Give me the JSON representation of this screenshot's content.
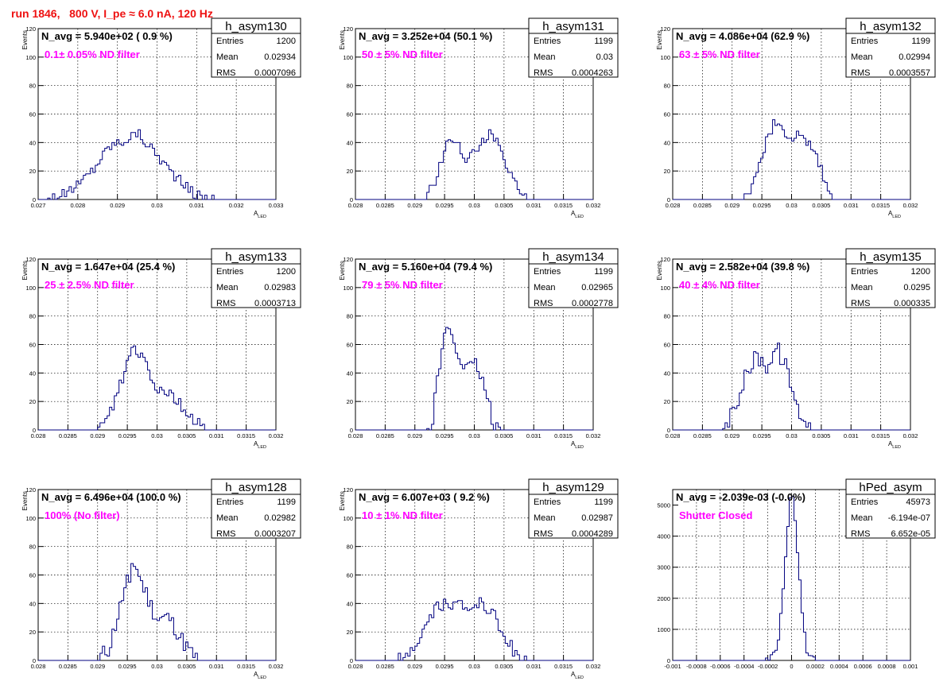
{
  "page_title": "run 1846,   800 V, I_pe ≈ 6.0 nA, 120 Hz",
  "colors": {
    "title": "#ee1111",
    "hist_line": "#00007f",
    "annotation": "#ff00ff",
    "grid": "#000000"
  },
  "chart_data": [
    {
      "type": "bar",
      "name": "h_asym130",
      "avg_text": "N_avg = 5.940e+02 ( 0.9 %)",
      "filter_text": "0.1± 0.05% ND filter",
      "stats": [
        [
          "Entries",
          "1200"
        ],
        [
          "Mean",
          "0.02934"
        ],
        [
          "RMS",
          "0.0007096"
        ]
      ],
      "xlabel": "A",
      "xlabel_sub": "LED",
      "ylabel": "Events",
      "xlim": [
        0.027,
        0.033
      ],
      "ylim": [
        0,
        120
      ],
      "xticks": [
        0.027,
        0.028,
        0.029,
        0.03,
        0.031,
        0.032,
        0.033
      ],
      "xtick_labels": [
        "0.027",
        "0.028",
        "0.029",
        "0.03",
        "0.031",
        "0.032",
        "0.033"
      ],
      "yticks": [
        0,
        20,
        40,
        60,
        80,
        100,
        120
      ],
      "ytick_labels": [
        "0",
        "20",
        "40",
        "60",
        "80",
        "100",
        "120"
      ],
      "profile": [
        [
          0.0272,
          0
        ],
        [
          0.0276,
          3
        ],
        [
          0.028,
          10
        ],
        [
          0.0284,
          22
        ],
        [
          0.0288,
          38
        ],
        [
          0.0292,
          42
        ],
        [
          0.0295,
          47
        ],
        [
          0.0298,
          38
        ],
        [
          0.0302,
          25
        ],
        [
          0.0306,
          12
        ],
        [
          0.031,
          3
        ],
        [
          0.0313,
          1
        ],
        [
          0.0316,
          0
        ]
      ],
      "jitter": 4
    },
    {
      "type": "bar",
      "name": "h_asym131",
      "avg_text": "N_avg = 3.252e+04 (50.1 %)",
      "filter_text": "50 ± 5% ND filter",
      "stats": [
        [
          "Entries",
          "1199"
        ],
        [
          "Mean",
          "0.03"
        ],
        [
          "RMS",
          "0.0004263"
        ]
      ],
      "xlabel": "A",
      "xlabel_sub": "LED",
      "ylabel": "Events",
      "xlim": [
        0.028,
        0.032
      ],
      "ylim": [
        0,
        120
      ],
      "xticks": [
        0.028,
        0.0285,
        0.029,
        0.0295,
        0.03,
        0.0305,
        0.031,
        0.0315,
        0.032
      ],
      "xtick_labels": [
        "0.028",
        "0.0285",
        "0.029",
        "0.0295",
        "0.03",
        "0.0305",
        "0.031",
        "0.0315",
        "0.032"
      ],
      "yticks": [
        0,
        20,
        40,
        60,
        80,
        100,
        120
      ],
      "ytick_labels": [
        "0",
        "20",
        "40",
        "60",
        "80",
        "100",
        "120"
      ],
      "profile": [
        [
          0.0292,
          0
        ],
        [
          0.0294,
          20
        ],
        [
          0.02955,
          45
        ],
        [
          0.0297,
          42
        ],
        [
          0.02985,
          28
        ],
        [
          0.03,
          32
        ],
        [
          0.03025,
          46
        ],
        [
          0.0304,
          38
        ],
        [
          0.0306,
          18
        ],
        [
          0.0308,
          2
        ],
        [
          0.0309,
          0
        ]
      ],
      "jitter": 4
    },
    {
      "type": "bar",
      "name": "h_asym132",
      "avg_text": "N_avg = 4.086e+04 (62.9 %)",
      "filter_text": "63 ± 5% ND filter",
      "stats": [
        [
          "Entries",
          "1199"
        ],
        [
          "Mean",
          "0.02994"
        ],
        [
          "RMS",
          "0.0003557"
        ]
      ],
      "xlabel": "A",
      "xlabel_sub": "LED",
      "ylabel": "Events",
      "xlim": [
        0.028,
        0.032
      ],
      "ylim": [
        0,
        120
      ],
      "xticks": [
        0.028,
        0.0285,
        0.029,
        0.0295,
        0.03,
        0.0305,
        0.031,
        0.0315,
        0.032
      ],
      "xtick_labels": [
        "0.028",
        "0.0285",
        "0.029",
        "0.0295",
        "0.03",
        "0.0305",
        "0.031",
        "0.0315",
        "0.032"
      ],
      "yticks": [
        0,
        20,
        40,
        60,
        80,
        100,
        120
      ],
      "ytick_labels": [
        "0",
        "20",
        "40",
        "60",
        "80",
        "100",
        "120"
      ],
      "profile": [
        [
          0.0292,
          0
        ],
        [
          0.0294,
          18
        ],
        [
          0.0296,
          42
        ],
        [
          0.0297,
          52
        ],
        [
          0.0299,
          46
        ],
        [
          0.0301,
          45
        ],
        [
          0.0303,
          40
        ],
        [
          0.03045,
          28
        ],
        [
          0.0306,
          8
        ],
        [
          0.0307,
          0
        ]
      ],
      "jitter": 5
    },
    {
      "type": "bar",
      "name": "h_asym133",
      "avg_text": "N_avg = 1.647e+04 (25.4 %)",
      "filter_text": "25 ± 2.5% ND filter",
      "stats": [
        [
          "Entries",
          "1200"
        ],
        [
          "Mean",
          "0.02983"
        ],
        [
          "RMS",
          "0.0003713"
        ]
      ],
      "xlabel": "A",
      "xlabel_sub": "LED",
      "ylabel": "Events",
      "xlim": [
        0.028,
        0.032
      ],
      "ylim": [
        0,
        120
      ],
      "xticks": [
        0.028,
        0.0285,
        0.029,
        0.0295,
        0.03,
        0.0305,
        0.031,
        0.0315,
        0.032
      ],
      "xtick_labels": [
        "0.028",
        "0.0285",
        "0.029",
        "0.0295",
        "0.03",
        "0.0305",
        "0.031",
        "0.0315",
        "0.032"
      ],
      "yticks": [
        0,
        20,
        40,
        60,
        80,
        100,
        120
      ],
      "ytick_labels": [
        "0",
        "20",
        "40",
        "60",
        "80",
        "100",
        "120"
      ],
      "profile": [
        [
          0.029,
          0
        ],
        [
          0.0292,
          10
        ],
        [
          0.0294,
          35
        ],
        [
          0.0296,
          60
        ],
        [
          0.0298,
          50
        ],
        [
          0.03,
          30
        ],
        [
          0.0302,
          28
        ],
        [
          0.0304,
          18
        ],
        [
          0.0306,
          6
        ],
        [
          0.0308,
          1
        ],
        [
          0.0309,
          0
        ]
      ],
      "jitter": 5
    },
    {
      "type": "bar",
      "name": "h_asym134",
      "avg_text": "N_avg = 5.160e+04 (79.4 %)",
      "filter_text": "79 ± 5% ND filter",
      "stats": [
        [
          "Entries",
          "1199"
        ],
        [
          "Mean",
          "0.02965"
        ],
        [
          "RMS",
          "0.0002778"
        ]
      ],
      "xlabel": "A",
      "xlabel_sub": "LED",
      "ylabel": "Events",
      "xlim": [
        0.028,
        0.032
      ],
      "ylim": [
        0,
        120
      ],
      "xticks": [
        0.028,
        0.0285,
        0.029,
        0.0295,
        0.03,
        0.0305,
        0.031,
        0.0315,
        0.032
      ],
      "xtick_labels": [
        "0.028",
        "0.0285",
        "0.029",
        "0.0295",
        "0.03",
        "0.0305",
        "0.031",
        "0.0315",
        "0.032"
      ],
      "yticks": [
        0,
        20,
        40,
        60,
        80,
        100,
        120
      ],
      "ytick_labels": [
        "0",
        "20",
        "40",
        "60",
        "80",
        "100",
        "120"
      ],
      "profile": [
        [
          0.0292,
          0
        ],
        [
          0.0293,
          10
        ],
        [
          0.0294,
          40
        ],
        [
          0.02955,
          76
        ],
        [
          0.0297,
          55
        ],
        [
          0.0299,
          42
        ],
        [
          0.03005,
          45
        ],
        [
          0.0302,
          25
        ],
        [
          0.0303,
          8
        ],
        [
          0.0304,
          2
        ],
        [
          0.0305,
          0
        ]
      ],
      "jitter": 6
    },
    {
      "type": "bar",
      "name": "h_asym135",
      "avg_text": "N_avg = 2.582e+04 (39.8 %)",
      "filter_text": "40 ± 4% ND filter",
      "stats": [
        [
          "Entries",
          "1200"
        ],
        [
          "Mean",
          "0.0295"
        ],
        [
          "RMS",
          "0.000335"
        ]
      ],
      "xlabel": "A",
      "xlabel_sub": "LED",
      "ylabel": "Events",
      "xlim": [
        0.028,
        0.032
      ],
      "ylim": [
        0,
        120
      ],
      "xticks": [
        0.028,
        0.0285,
        0.029,
        0.0295,
        0.03,
        0.0305,
        0.031,
        0.0315,
        0.032
      ],
      "xtick_labels": [
        "0.028",
        "0.0285",
        "0.029",
        "0.0295",
        "0.03",
        "0.0305",
        "0.031",
        "0.0315",
        "0.032"
      ],
      "yticks": [
        0,
        20,
        40,
        60,
        80,
        100,
        120
      ],
      "ytick_labels": [
        "0",
        "20",
        "40",
        "60",
        "80",
        "100",
        "120"
      ],
      "profile": [
        [
          0.0288,
          0
        ],
        [
          0.029,
          10
        ],
        [
          0.0292,
          35
        ],
        [
          0.0294,
          52
        ],
        [
          0.0296,
          45
        ],
        [
          0.02975,
          58
        ],
        [
          0.0299,
          45
        ],
        [
          0.0301,
          15
        ],
        [
          0.0303,
          3
        ],
        [
          0.0304,
          0
        ]
      ],
      "jitter": 6
    },
    {
      "type": "bar",
      "name": "h_asym128",
      "avg_text": "N_avg = 6.496e+04 (100.0 %)",
      "filter_text": "100% (No filter)",
      "stats": [
        [
          "Entries",
          "1199"
        ],
        [
          "Mean",
          "0.02982"
        ],
        [
          "RMS",
          "0.0003207"
        ]
      ],
      "xlabel": "A",
      "xlabel_sub": "LED",
      "ylabel": "Events",
      "xlim": [
        0.028,
        0.032
      ],
      "ylim": [
        0,
        120
      ],
      "xticks": [
        0.028,
        0.0285,
        0.029,
        0.0295,
        0.03,
        0.0305,
        0.031,
        0.0315,
        0.032
      ],
      "xtick_labels": [
        "0.028",
        "0.0285",
        "0.029",
        "0.0295",
        "0.03",
        "0.0305",
        "0.031",
        "0.0315",
        "0.032"
      ],
      "yticks": [
        0,
        20,
        40,
        60,
        80,
        100,
        120
      ],
      "ytick_labels": [
        "0",
        "20",
        "40",
        "60",
        "80",
        "100",
        "120"
      ],
      "profile": [
        [
          0.029,
          0
        ],
        [
          0.0292,
          8
        ],
        [
          0.0294,
          40
        ],
        [
          0.0296,
          70
        ],
        [
          0.0298,
          48
        ],
        [
          0.03,
          28
        ],
        [
          0.0302,
          30
        ],
        [
          0.0304,
          15
        ],
        [
          0.0306,
          3
        ],
        [
          0.0307,
          0
        ]
      ],
      "jitter": 6
    },
    {
      "type": "bar",
      "name": "h_asym129",
      "avg_text": "N_avg = 6.007e+03 ( 9.2 %)",
      "filter_text": "10 ± 1% ND filter",
      "stats": [
        [
          "Entries",
          "1199"
        ],
        [
          "Mean",
          "0.02987"
        ],
        [
          "RMS",
          "0.0004289"
        ]
      ],
      "xlabel": "A",
      "xlabel_sub": "LED",
      "ylabel": "Events",
      "xlim": [
        0.028,
        0.032
      ],
      "ylim": [
        0,
        120
      ],
      "xticks": [
        0.028,
        0.0285,
        0.029,
        0.0295,
        0.03,
        0.0305,
        0.031,
        0.0315,
        0.032
      ],
      "xtick_labels": [
        "0.028",
        "0.0285",
        "0.029",
        "0.0295",
        "0.03",
        "0.0305",
        "0.031",
        "0.0315",
        "0.032"
      ],
      "yticks": [
        0,
        20,
        40,
        60,
        80,
        100,
        120
      ],
      "ytick_labels": [
        "0",
        "20",
        "40",
        "60",
        "80",
        "100",
        "120"
      ],
      "profile": [
        [
          0.0287,
          0
        ],
        [
          0.0289,
          4
        ],
        [
          0.0291,
          15
        ],
        [
          0.0293,
          32
        ],
        [
          0.0295,
          42
        ],
        [
          0.0297,
          38
        ],
        [
          0.0299,
          36
        ],
        [
          0.0301,
          42
        ],
        [
          0.0303,
          35
        ],
        [
          0.0305,
          18
        ],
        [
          0.0307,
          5
        ],
        [
          0.0309,
          0
        ]
      ],
      "jitter": 5
    },
    {
      "type": "bar",
      "name": "hPed_asym",
      "avg_text": "N_avg = -2.039e-03 (-0.0%)",
      "filter_text": "Shutter Closed",
      "stats": [
        [
          "Entries",
          "45973"
        ],
        [
          "Mean",
          "-6.194e-07"
        ],
        [
          "RMS",
          "6.652e-05"
        ]
      ],
      "xlabel": "",
      "xlabel_sub": "",
      "ylabel": "",
      "xlim": [
        -0.001,
        0.001
      ],
      "ylim": [
        0,
        5500
      ],
      "xticks": [
        -0.001,
        -0.0008,
        -0.0006,
        -0.0004,
        -0.0002,
        0,
        0.0002,
        0.0004,
        0.0006,
        0.0008,
        0.001
      ],
      "xtick_labels": [
        "-0.001",
        "-0.0008",
        "-0.0006",
        "-0.0004",
        "-0.0002",
        "0",
        "0.0002",
        "0.0004",
        "0.0006",
        "0.0008",
        "0.001"
      ],
      "yticks": [
        0,
        1000,
        2000,
        3000,
        4000,
        5000
      ],
      "ytick_labels": [
        "0",
        "1000",
        "2000",
        "3000",
        "4000",
        "5000"
      ],
      "profile": [
        [
          -0.00022,
          0
        ],
        [
          -0.00016,
          60
        ],
        [
          -0.00012,
          400
        ],
        [
          -8e-05,
          1700
        ],
        [
          -4e-05,
          3900
        ],
        [
          -1e-05,
          5300
        ],
        [
          2e-05,
          5100
        ],
        [
          5e-05,
          3400
        ],
        [
          9e-05,
          1500
        ],
        [
          0.00013,
          350
        ],
        [
          0.00017,
          40
        ],
        [
          0.00021,
          0
        ]
      ],
      "jitter": 150
    }
  ]
}
